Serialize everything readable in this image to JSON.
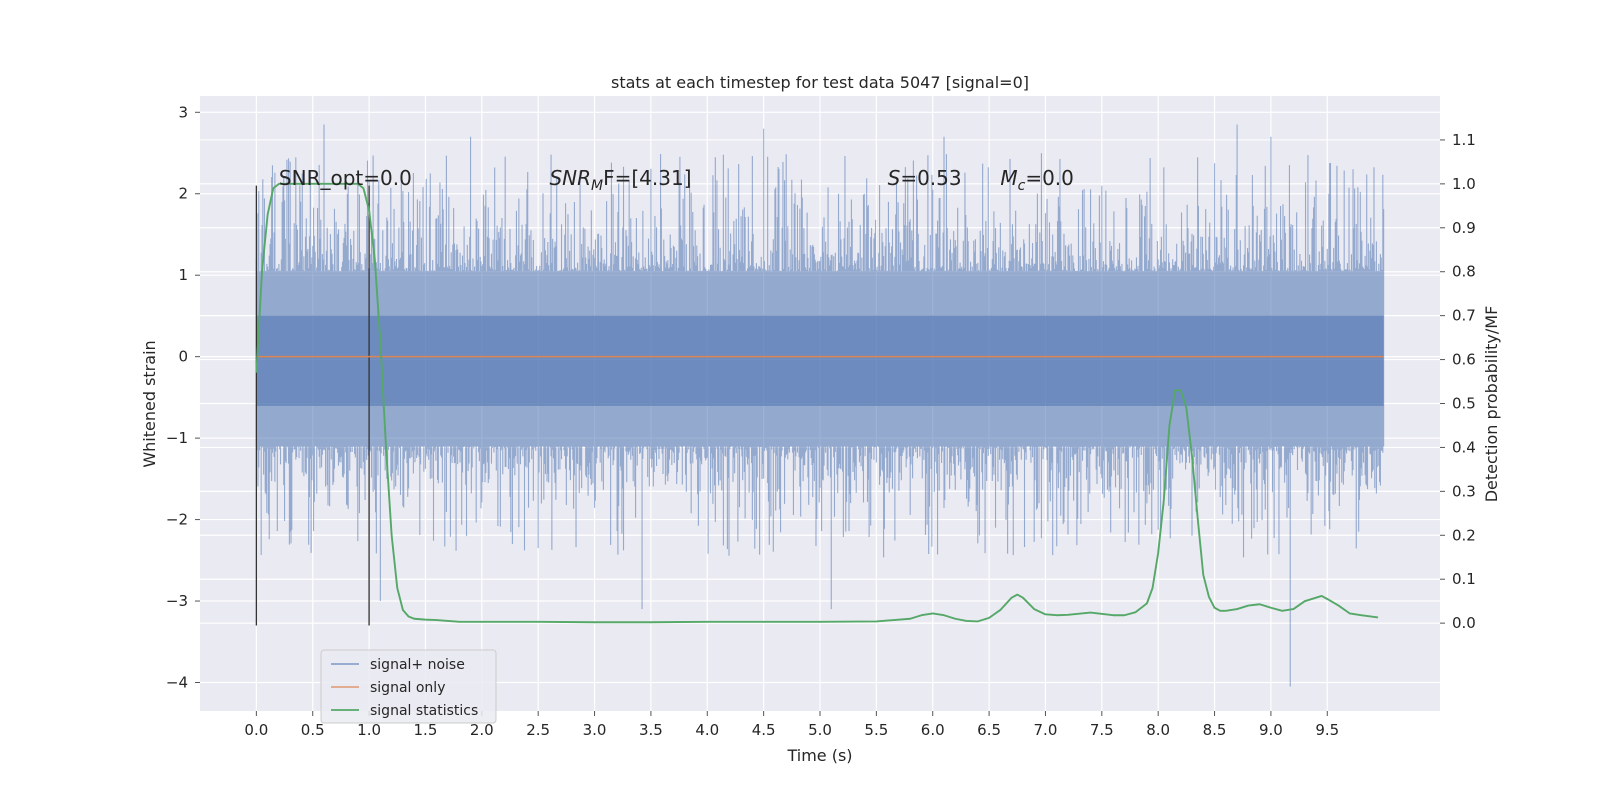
{
  "chart_data": {
    "type": "line",
    "title": "stats at each timestep for test data 5047 [signal=0]",
    "xlabel": "Time (s)",
    "ylabel": "Whitened strain",
    "y2label": "Detection probability/MF",
    "xlim": [
      -0.5,
      10.5
    ],
    "ylim": [
      -4.35,
      3.2
    ],
    "y2lim": [
      -0.2,
      1.2
    ],
    "x_ticks": [
      0.0,
      0.5,
      1.0,
      1.5,
      2.0,
      2.5,
      3.0,
      3.5,
      4.0,
      4.5,
      5.0,
      5.5,
      6.0,
      6.5,
      7.0,
      7.5,
      8.0,
      8.5,
      9.0,
      9.5
    ],
    "x_tick_labels": [
      "0.0",
      "0.5",
      "1.0",
      "1.5",
      "2.0",
      "2.5",
      "3.0",
      "3.5",
      "4.0",
      "4.5",
      "5.0",
      "5.5",
      "6.0",
      "6.5",
      "7.0",
      "7.5",
      "8.0",
      "8.5",
      "9.0",
      "9.5"
    ],
    "y_ticks": [
      -4,
      -3,
      -2,
      -1,
      0,
      1,
      2,
      3
    ],
    "y_tick_labels": [
      "−4",
      "−3",
      "−2",
      "−1",
      "0",
      "1",
      "2",
      "3"
    ],
    "y2_ticks": [
      0.0,
      0.1,
      0.2,
      0.3,
      0.4,
      0.5,
      0.6,
      0.7,
      0.8,
      0.9,
      1.0,
      1.1
    ],
    "y2_tick_labels": [
      "0.0",
      "0.1",
      "0.2",
      "0.3",
      "0.4",
      "0.5",
      "0.6",
      "0.7",
      "0.8",
      "0.9",
      "1.0",
      "1.1"
    ],
    "grid": true,
    "legend_position": "lower-left",
    "annotations": [
      {
        "id": "snr-opt",
        "x": 0.2,
        "y2": 1.0,
        "text": "SNR_opt=0.0"
      },
      {
        "id": "snr-mf",
        "x": 2.6,
        "y2": 1.0,
        "text": "SNR_MF=[4.31]",
        "base": "SNR",
        "sub": "M",
        "rest": "F=[4.31]"
      },
      {
        "id": "s-stat",
        "x": 5.6,
        "y2": 1.0,
        "text": "S=0.53",
        "base": "S",
        "rest": "=0.53"
      },
      {
        "id": "mc",
        "x": 6.6,
        "y2": 1.0,
        "text": "M_c=0.0",
        "base": "M",
        "sub": "c",
        "rest": "=0.0"
      }
    ],
    "vlines": [
      {
        "x": 0.0,
        "y_range": [
          -3.3,
          2.1
        ]
      },
      {
        "x": 1.0,
        "y_range": [
          -3.3,
          2.1
        ]
      }
    ],
    "series": [
      {
        "name": "signal+ noise",
        "axis": "left",
        "color": "#4c72b0",
        "opacity": 0.55,
        "x_range": [
          0.0,
          10.0
        ],
        "envelope": {
          "band_upper": 1.05,
          "band_lower": -1.1,
          "peak_max": 2.85,
          "trough_min": -4.05,
          "notable_peaks": [
            [
              0.6,
              2.85
            ],
            [
              1.9,
              2.7
            ],
            [
              4.5,
              2.8
            ],
            [
              6.1,
              2.7
            ],
            [
              8.7,
              2.85
            ],
            [
              9.0,
              2.7
            ]
          ],
          "notable_troughs": [
            [
              3.42,
              -3.1
            ],
            [
              5.1,
              -3.1
            ],
            [
              9.17,
              -4.05
            ],
            [
              1.1,
              -3.0
            ]
          ]
        }
      },
      {
        "name": "signal only",
        "axis": "left",
        "color": "#dd8452",
        "x": [
          0.0,
          10.0
        ],
        "values": [
          0.0,
          0.0
        ]
      },
      {
        "name": "signal statistics",
        "axis": "right",
        "color": "#55a868",
        "x": [
          0.0,
          0.05,
          0.1,
          0.15,
          0.2,
          0.3,
          0.4,
          0.5,
          0.6,
          0.7,
          0.8,
          0.9,
          0.95,
          1.0,
          1.05,
          1.1,
          1.15,
          1.2,
          1.25,
          1.3,
          1.35,
          1.4,
          1.5,
          1.6,
          1.8,
          2.0,
          2.5,
          3.0,
          3.5,
          4.0,
          4.5,
          5.0,
          5.5,
          5.8,
          5.9,
          6.0,
          6.1,
          6.2,
          6.3,
          6.4,
          6.5,
          6.6,
          6.7,
          6.75,
          6.8,
          6.9,
          7.0,
          7.1,
          7.2,
          7.4,
          7.6,
          7.7,
          7.8,
          7.9,
          7.95,
          8.0,
          8.05,
          8.1,
          8.15,
          8.2,
          8.25,
          8.3,
          8.35,
          8.4,
          8.45,
          8.5,
          8.55,
          8.6,
          8.7,
          8.8,
          8.9,
          9.0,
          9.1,
          9.2,
          9.3,
          9.4,
          9.45,
          9.5,
          9.6,
          9.7,
          9.8,
          9.95
        ],
        "values": [
          0.57,
          0.8,
          0.93,
          0.99,
          1.0,
          1.0,
          1.0,
          1.0,
          1.0,
          1.0,
          1.0,
          1.0,
          0.99,
          0.94,
          0.83,
          0.64,
          0.4,
          0.2,
          0.08,
          0.03,
          0.015,
          0.01,
          0.008,
          0.007,
          0.003,
          0.003,
          0.003,
          0.002,
          0.002,
          0.003,
          0.003,
          0.003,
          0.004,
          0.01,
          0.018,
          0.022,
          0.018,
          0.01,
          0.005,
          0.004,
          0.012,
          0.03,
          0.058,
          0.065,
          0.058,
          0.032,
          0.02,
          0.018,
          0.019,
          0.024,
          0.018,
          0.018,
          0.025,
          0.045,
          0.08,
          0.16,
          0.28,
          0.45,
          0.53,
          0.53,
          0.49,
          0.38,
          0.24,
          0.11,
          0.06,
          0.035,
          0.028,
          0.028,
          0.032,
          0.04,
          0.043,
          0.035,
          0.028,
          0.032,
          0.05,
          0.058,
          0.062,
          0.055,
          0.04,
          0.022,
          0.018,
          0.013
        ]
      }
    ]
  }
}
